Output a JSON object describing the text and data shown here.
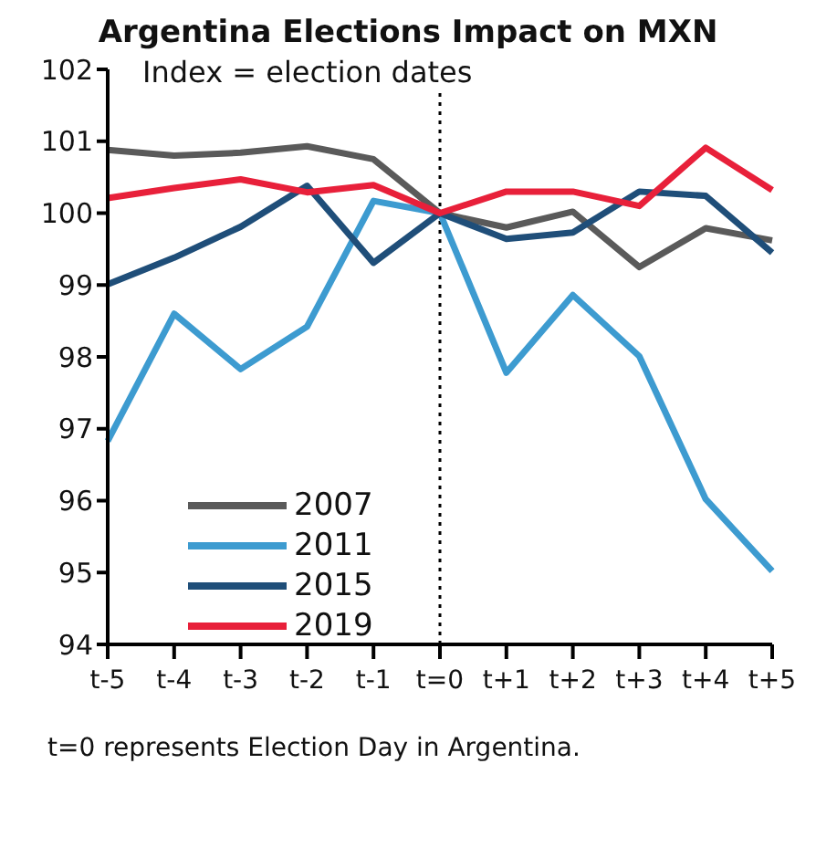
{
  "chart_data": {
    "type": "line",
    "title": "Argentina Elections Impact on MXN",
    "annotations": [
      "Index = election dates",
      "t=0 represents Election Day in Argentina."
    ],
    "categories": [
      "t-5",
      "t-4",
      "t-3",
      "t-2",
      "t-1",
      "t=0",
      "t+1",
      "t+2",
      "t+3",
      "t+4",
      "t+5"
    ],
    "series": [
      {
        "name": "2007",
        "color": "#5a5a5a",
        "values": [
          100.88,
          100.8,
          100.84,
          100.93,
          100.75,
          100,
          99.8,
          100.02,
          99.25,
          99.79,
          99.62
        ]
      },
      {
        "name": "2011",
        "color": "#3d9bd0",
        "values": [
          96.83,
          98.6,
          97.83,
          98.42,
          100.17,
          100,
          97.78,
          98.86,
          98.01,
          96.02,
          95.02
        ]
      },
      {
        "name": "2015",
        "color": "#1f4e79",
        "values": [
          99.01,
          99.38,
          99.81,
          100.38,
          99.31,
          100,
          99.64,
          99.73,
          100.3,
          100.24,
          99.45
        ]
      },
      {
        "name": "2019",
        "color": "#e8203a",
        "values": [
          100.21,
          100.35,
          100.47,
          100.29,
          100.39,
          100,
          100.3,
          100.3,
          100.1,
          100.91,
          100.32
        ]
      }
    ],
    "ylim": [
      94,
      102
    ],
    "yticks": [
      94,
      95,
      96,
      97,
      98,
      99,
      100,
      101,
      102
    ],
    "ref_lines": [
      {
        "axis": "x",
        "value": "t=0",
        "line_style": "dotted",
        "color": "#000000"
      }
    ],
    "grid": false,
    "legend": "bottom left",
    "marker": "none",
    "line_style": "solid"
  }
}
